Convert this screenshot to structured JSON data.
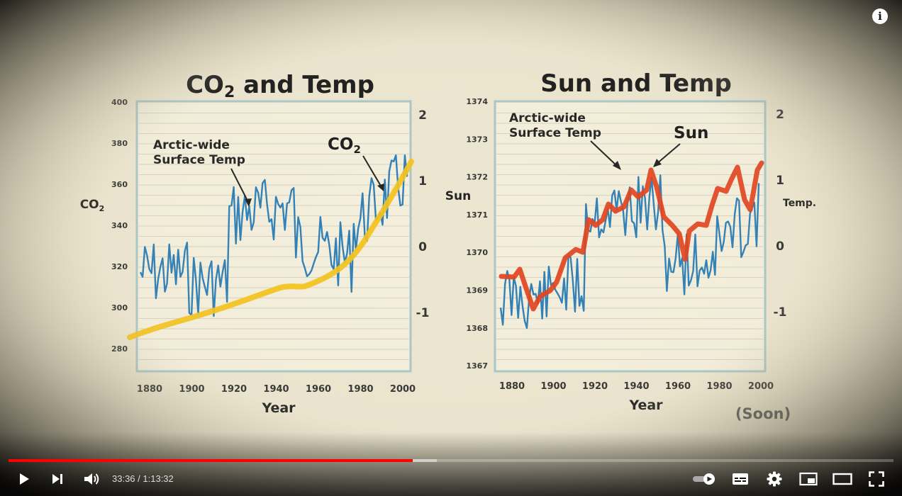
{
  "player": {
    "time_current": "33:36",
    "time_separator": " / ",
    "time_total": "1:13:32",
    "progress_played": 0.4569,
    "progress_buffered": 0.4839,
    "accent_color": "#ff0000"
  },
  "controls": {
    "play_icon": "play-icon",
    "next_icon": "next-icon",
    "volume_icon": "volume-icon",
    "autoplay_icon": "autoplay-toggle-icon",
    "subtitles_icon": "subtitles-icon",
    "settings_icon": "settings-gear-icon",
    "miniplayer_icon": "miniplayer-icon",
    "theater_icon": "theater-mode-icon",
    "fullscreen_icon": "fullscreen-icon",
    "info_label": "i"
  },
  "video_frame": {
    "left_chart": {
      "title_main": "CO",
      "title_sub": "2",
      "title_rest": " and Temp",
      "y_left_label_main": "CO",
      "y_left_label_sub": "2",
      "y_left_ticks": [
        "400",
        "380",
        "360",
        "340",
        "320",
        "300",
        "280"
      ],
      "y_right_ticks": [
        "2",
        "1",
        "0",
        "-1"
      ],
      "x_ticks": [
        "1880",
        "1900",
        "1920",
        "1940",
        "1960",
        "1980",
        "2000"
      ],
      "x_label": "Year",
      "annotation_temp_line1": "Arctic-wide",
      "annotation_temp_line2": "Surface Temp",
      "annotation_series_main": "CO",
      "annotation_series_sub": "2"
    },
    "right_chart": {
      "title": "Sun and Temp",
      "y_left_label": "Sun",
      "y_right_label": "Temp.",
      "y_left_ticks": [
        "1374",
        "1373",
        "1372",
        "1371",
        "1370",
        "1369",
        "1368",
        "1367"
      ],
      "y_right_ticks": [
        "2",
        "1",
        "0",
        "-1"
      ],
      "x_ticks": [
        "1880",
        "1900",
        "1920",
        "1940",
        "1960",
        "1980",
        "2000"
      ],
      "x_label": "Year",
      "annotation_temp_line1": "Arctic-wide",
      "annotation_temp_line2": "Surface Temp",
      "annotation_series": "Sun",
      "credit": "(Soon)"
    },
    "colors": {
      "temp_line": "#2f7fb6",
      "co2_line": "#f4c21a",
      "sun_line": "#e2411c",
      "paper": "#efead8",
      "chart_bg": "#f3efdc",
      "frame_border": "#a9c6c8"
    }
  }
}
